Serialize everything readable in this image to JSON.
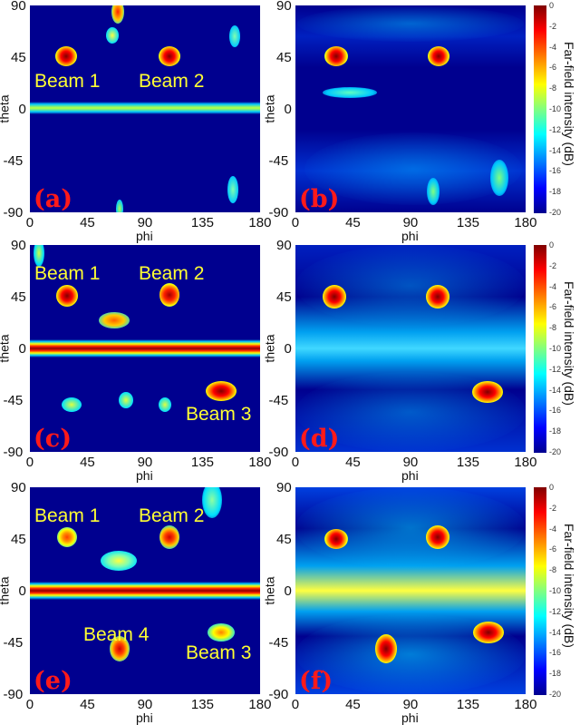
{
  "figure": {
    "colorbar": {
      "title": "Far-field intensity (dB)",
      "ticks": [
        "0",
        "-2",
        "-4",
        "-6",
        "-8",
        "-10",
        "-12",
        "-14",
        "-16",
        "-18",
        "-20"
      ]
    },
    "axes": {
      "xlabel": "phi",
      "ylabel": "theta",
      "xticks": [
        "0",
        "45",
        "90",
        "135",
        "180"
      ],
      "yticks": [
        "90",
        "45",
        "0",
        "-45",
        "-90"
      ]
    },
    "panels": [
      {
        "id": "a",
        "label": "(a)",
        "beams": [
          {
            "text": "Beam 1"
          },
          {
            "text": "Beam 2"
          }
        ]
      },
      {
        "id": "b",
        "label": "(b)",
        "beams": []
      },
      {
        "id": "c",
        "label": "(c)",
        "beams": [
          {
            "text": "Beam 1"
          },
          {
            "text": "Beam 2"
          },
          {
            "text": "Beam 3"
          }
        ]
      },
      {
        "id": "d",
        "label": "(d)",
        "beams": []
      },
      {
        "id": "e",
        "label": "(e)",
        "beams": [
          {
            "text": "Beam 1"
          },
          {
            "text": "Beam 2"
          },
          {
            "text": "Beam 4"
          },
          {
            "text": "Beam 3"
          }
        ]
      },
      {
        "id": "f",
        "label": "(f)",
        "beams": []
      }
    ]
  },
  "chart_data": [
    {
      "type": "heatmap",
      "panel": "(a)",
      "title": "",
      "xlabel": "phi",
      "ylabel": "theta",
      "xlim": [
        0,
        180
      ],
      "ylim": [
        -90,
        90
      ],
      "colorbar": {
        "label": "Far-field intensity (dB)",
        "range": [
          -20,
          0
        ]
      },
      "peaks": [
        {
          "name": "Beam 1",
          "phi": 30,
          "theta": 45,
          "dB": -1
        },
        {
          "name": "Beam 2",
          "phi": 110,
          "theta": 45,
          "dB": -1
        }
      ],
      "bands": [
        {
          "theta": 0,
          "dB": -9
        }
      ],
      "annotations": [
        "Beam 1",
        "Beam 2",
        "(a)"
      ]
    },
    {
      "type": "heatmap",
      "panel": "(b)",
      "xlabel": "phi",
      "ylabel": "theta",
      "xlim": [
        0,
        180
      ],
      "ylim": [
        -90,
        90
      ],
      "colorbar": {
        "label": "Far-field intensity (dB)",
        "range": [
          -20,
          0
        ]
      },
      "peaks": [
        {
          "phi": 30,
          "theta": 45,
          "dB": -1
        },
        {
          "phi": 110,
          "theta": 45,
          "dB": -1
        }
      ],
      "annotations": [
        "(b)"
      ]
    },
    {
      "type": "heatmap",
      "panel": "(c)",
      "xlabel": "phi",
      "ylabel": "theta",
      "xlim": [
        0,
        180
      ],
      "ylim": [
        -90,
        90
      ],
      "colorbar": {
        "label": "Far-field intensity (dB)",
        "range": [
          -20,
          0
        ]
      },
      "peaks": [
        {
          "name": "Beam 1",
          "phi": 30,
          "theta": 45,
          "dB": -2
        },
        {
          "name": "Beam 2",
          "phi": 110,
          "theta": 45,
          "dB": -2
        },
        {
          "name": "Beam 3",
          "phi": 150,
          "theta": -30,
          "dB": -2
        },
        {
          "phi": 65,
          "theta": 27,
          "dB": -5
        }
      ],
      "bands": [
        {
          "theta": 0,
          "dB": 0
        }
      ],
      "annotations": [
        "Beam 1",
        "Beam 2",
        "Beam 3",
        "(c)"
      ]
    },
    {
      "type": "heatmap",
      "panel": "(d)",
      "xlabel": "phi",
      "ylabel": "theta",
      "xlim": [
        0,
        180
      ],
      "ylim": [
        -90,
        90
      ],
      "colorbar": {
        "label": "Far-field intensity (dB)",
        "range": [
          -20,
          0
        ]
      },
      "peaks": [
        {
          "phi": 30,
          "theta": 45,
          "dB": -1
        },
        {
          "phi": 110,
          "theta": 45,
          "dB": -1
        },
        {
          "phi": 150,
          "theta": -30,
          "dB": -1
        }
      ],
      "annotations": [
        "(d)"
      ]
    },
    {
      "type": "heatmap",
      "panel": "(e)",
      "xlabel": "phi",
      "ylabel": "theta",
      "xlim": [
        0,
        180
      ],
      "ylim": [
        -90,
        90
      ],
      "colorbar": {
        "label": "Far-field intensity (dB)",
        "range": [
          -20,
          0
        ]
      },
      "peaks": [
        {
          "name": "Beam 1",
          "phi": 30,
          "theta": 45,
          "dB": -4
        },
        {
          "name": "Beam 2",
          "phi": 110,
          "theta": 45,
          "dB": -3
        },
        {
          "name": "Beam 3",
          "phi": 150,
          "theta": -30,
          "dB": -5
        },
        {
          "name": "Beam 4",
          "phi": 70,
          "theta": -50,
          "dB": -3
        }
      ],
      "bands": [
        {
          "theta": 0,
          "dB": 0
        }
      ],
      "annotations": [
        "Beam 1",
        "Beam 2",
        "Beam 4",
        "Beam 3",
        "(e)"
      ]
    },
    {
      "type": "heatmap",
      "panel": "(f)",
      "xlabel": "phi",
      "ylabel": "theta",
      "xlim": [
        0,
        180
      ],
      "ylim": [
        -90,
        90
      ],
      "colorbar": {
        "label": "Far-field intensity (dB)",
        "range": [
          -20,
          0
        ]
      },
      "peaks": [
        {
          "phi": 30,
          "theta": 45,
          "dB": -1
        },
        {
          "phi": 110,
          "theta": 45,
          "dB": -1
        },
        {
          "phi": 150,
          "theta": -30,
          "dB": -1
        },
        {
          "phi": 70,
          "theta": -50,
          "dB": -1
        }
      ],
      "bands": [
        {
          "theta": 0,
          "dB": -7
        }
      ],
      "annotations": [
        "(f)"
      ]
    }
  ]
}
